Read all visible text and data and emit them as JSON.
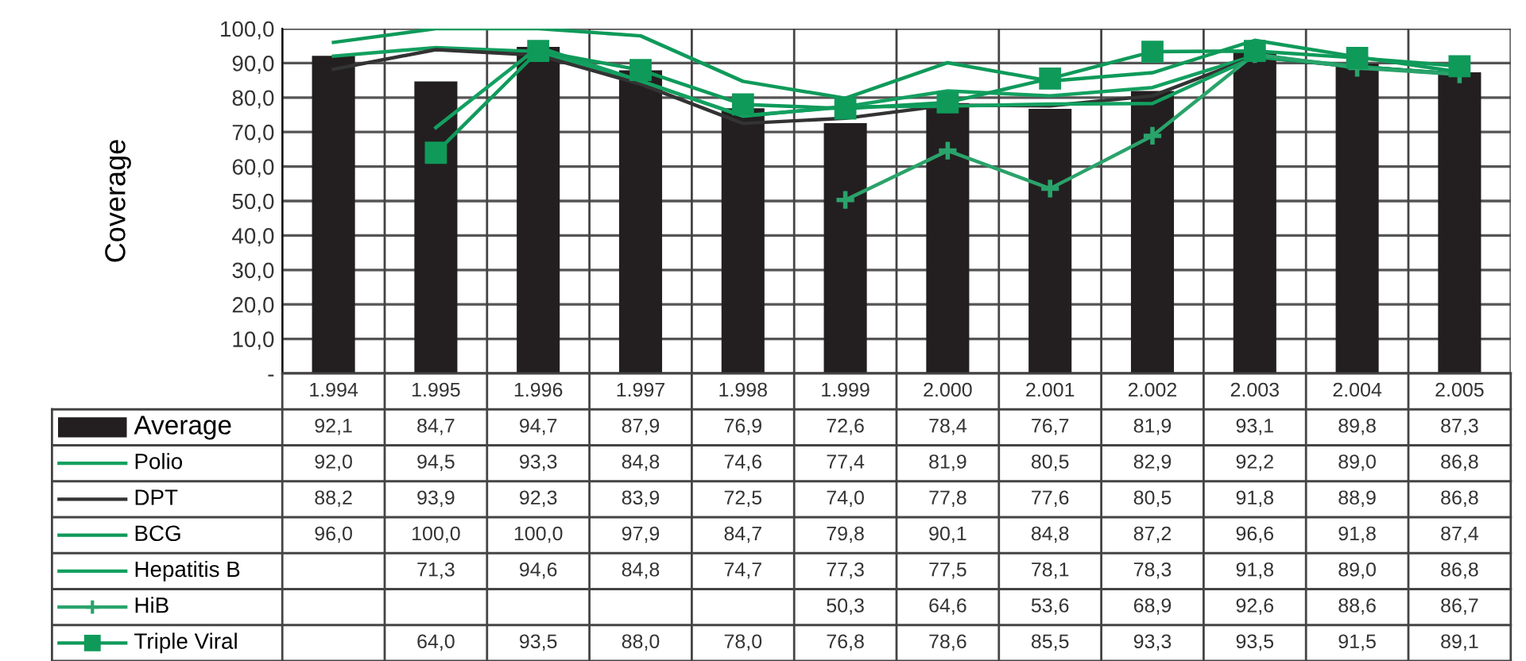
{
  "chart_data": {
    "type": "bar",
    "ylabel": "Coverage",
    "categories": [
      "1.994",
      "1.995",
      "1.996",
      "1.997",
      "1.998",
      "1.999",
      "2.000",
      "2.001",
      "2.002",
      "2.003",
      "2.004",
      "2.005"
    ],
    "series": [
      {
        "name": "Average",
        "color": "#231f20",
        "values": [
          92.1,
          84.7,
          94.7,
          87.9,
          76.9,
          72.6,
          78.4,
          76.7,
          81.9,
          93.1,
          89.8,
          87.3
        ],
        "value_labels": [
          "92,1",
          "84,7",
          "94,7",
          "87,9",
          "76,9",
          "72,6",
          "78,4",
          "76,7",
          "81,9",
          "93,1",
          "89,8",
          "87,3"
        ]
      },
      {
        "name": "Polio",
        "type": "line",
        "color": "#13a060",
        "values": [
          92.0,
          94.5,
          93.3,
          84.8,
          74.6,
          77.4,
          81.9,
          80.5,
          82.9,
          92.2,
          89.0,
          86.8
        ],
        "value_labels": [
          "92,0",
          "94,5",
          "93,3",
          "84,8",
          "74,6",
          "77,4",
          "81,9",
          "80,5",
          "82,9",
          "92,2",
          "89,0",
          "86,8"
        ]
      },
      {
        "name": "DPT",
        "type": "line",
        "color": "#333333",
        "values": [
          88.2,
          93.9,
          92.3,
          83.9,
          72.5,
          74.0,
          77.8,
          77.6,
          80.5,
          91.8,
          88.9,
          86.8
        ],
        "value_labels": [
          "88,2",
          "93,9",
          "92,3",
          "83,9",
          "72,5",
          "74,0",
          "77,8",
          "77,6",
          "80,5",
          "91,8",
          "88,9",
          "86,8"
        ]
      },
      {
        "name": "BCG",
        "type": "line",
        "color": "#0f9a5a",
        "values": [
          96.0,
          100.0,
          100.0,
          97.9,
          84.7,
          79.8,
          90.1,
          84.8,
          87.2,
          96.6,
          91.8,
          87.4
        ],
        "value_labels": [
          "96,0",
          "100,0",
          "100,0",
          "97,9",
          "84,7",
          "79,8",
          "90,1",
          "84,8",
          "87,2",
          "96,6",
          "91,8",
          "87,4"
        ]
      },
      {
        "name": "Hepatitis B",
        "type": "line",
        "color": "#13a060",
        "values": [
          null,
          71.3,
          94.6,
          84.8,
          74.7,
          77.3,
          77.5,
          78.1,
          78.3,
          91.8,
          89.0,
          86.8
        ],
        "value_labels": [
          null,
          "71,3",
          "94,6",
          "84,8",
          "74,7",
          "77,3",
          "77,5",
          "78,1",
          "78,3",
          "91,8",
          "89,0",
          "86,8"
        ]
      },
      {
        "name": "HiB",
        "type": "line",
        "color": "#2aa36b",
        "marker": "cross",
        "values": [
          null,
          null,
          null,
          null,
          null,
          50.3,
          64.6,
          53.6,
          68.9,
          92.6,
          88.6,
          86.7
        ],
        "value_labels": [
          null,
          null,
          null,
          null,
          null,
          "50,3",
          "64,6",
          "53,6",
          "68,9",
          "92,6",
          "88,6",
          "86,7"
        ]
      },
      {
        "name": "Triple Viral",
        "type": "line",
        "color": "#0f9a5a",
        "marker": "square",
        "values": [
          null,
          64.0,
          93.5,
          88.0,
          78.0,
          76.8,
          78.6,
          85.5,
          93.3,
          93.5,
          91.5,
          89.1
        ],
        "value_labels": [
          null,
          "64,0",
          "93,5",
          "88,0",
          "78,0",
          "76,8",
          "78,6",
          "85,5",
          "93,3",
          "93,5",
          "91,5",
          "89,1"
        ]
      }
    ],
    "ylim": [
      0,
      100
    ],
    "yticks": [
      {
        "value": 0,
        "label": "-"
      },
      {
        "value": 10,
        "label": "10,0"
      },
      {
        "value": 20,
        "label": "20,0"
      },
      {
        "value": 30,
        "label": "30,0"
      },
      {
        "value": 40,
        "label": "40,0"
      },
      {
        "value": 50,
        "label": "50,0"
      },
      {
        "value": 60,
        "label": "60,0"
      },
      {
        "value": 70,
        "label": "70,0"
      },
      {
        "value": 80,
        "label": "80,0"
      },
      {
        "value": 90,
        "label": "90,0"
      },
      {
        "value": 100,
        "label": "100,0"
      }
    ],
    "grid": "y",
    "legend": "bottom"
  }
}
